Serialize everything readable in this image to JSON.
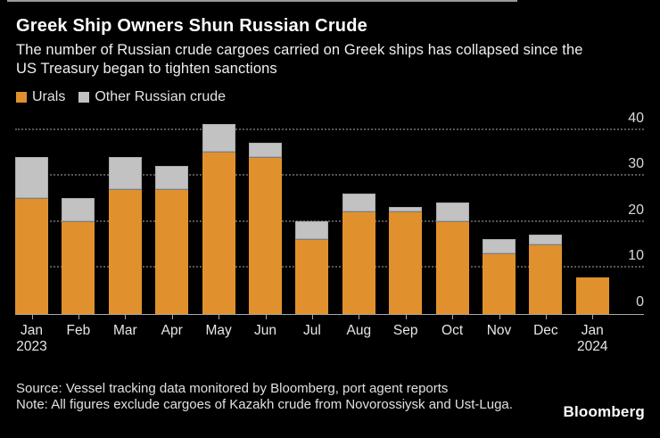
{
  "header": {
    "title": "Greek Ship Owners Shun Russian Crude",
    "subtitle": "The number of Russian crude cargoes carried on Greek ships has collapsed since the US Treasury began to tighten sanctions"
  },
  "legend": [
    {
      "label": "Urals",
      "color": "#e0912d"
    },
    {
      "label": "Other Russian crude",
      "color": "#c2c2c2"
    }
  ],
  "chart_data": {
    "type": "bar",
    "stacked": true,
    "title": "Greek Ship Owners Shun Russian Crude",
    "subtitle": "The number of Russian crude cargoes carried on Greek ships has collapsed since the US Treasury began to tighten sanctions",
    "categories": [
      "Jan 2023",
      "Feb",
      "Mar",
      "Apr",
      "May",
      "Jun",
      "Jul",
      "Aug",
      "Sep",
      "Oct",
      "Nov",
      "Dec",
      "Jan 2024"
    ],
    "series": [
      {
        "name": "Urals",
        "color": "#e0912d",
        "values": [
          25,
          20,
          27,
          27,
          35,
          34,
          16,
          22,
          22,
          20,
          13,
          15,
          8
        ]
      },
      {
        "name": "Other Russian crude",
        "color": "#c2c2c2",
        "values": [
          9,
          5,
          7,
          5,
          6,
          3,
          4,
          4,
          1,
          4,
          3,
          2,
          0
        ]
      }
    ],
    "totals": [
      34,
      25,
      34,
      32,
      41,
      37,
      20,
      26,
      23,
      24,
      16,
      17,
      8
    ],
    "xlabel": "",
    "ylabel": "",
    "ylim": [
      0,
      40
    ],
    "yticks": [
      0,
      10,
      20,
      30,
      40
    ],
    "y_axis_side": "right",
    "grid": "horizontal-dotted",
    "legend_position": "top-left",
    "background": "#000000"
  },
  "footer": {
    "source": "Source: Vessel tracking data monitored by Bloomberg, port agent reports",
    "note": "Note: All figures exclude cargoes of Kazakh crude from Novorossiysk and Ust-Luga.",
    "logo": "Bloomberg"
  }
}
